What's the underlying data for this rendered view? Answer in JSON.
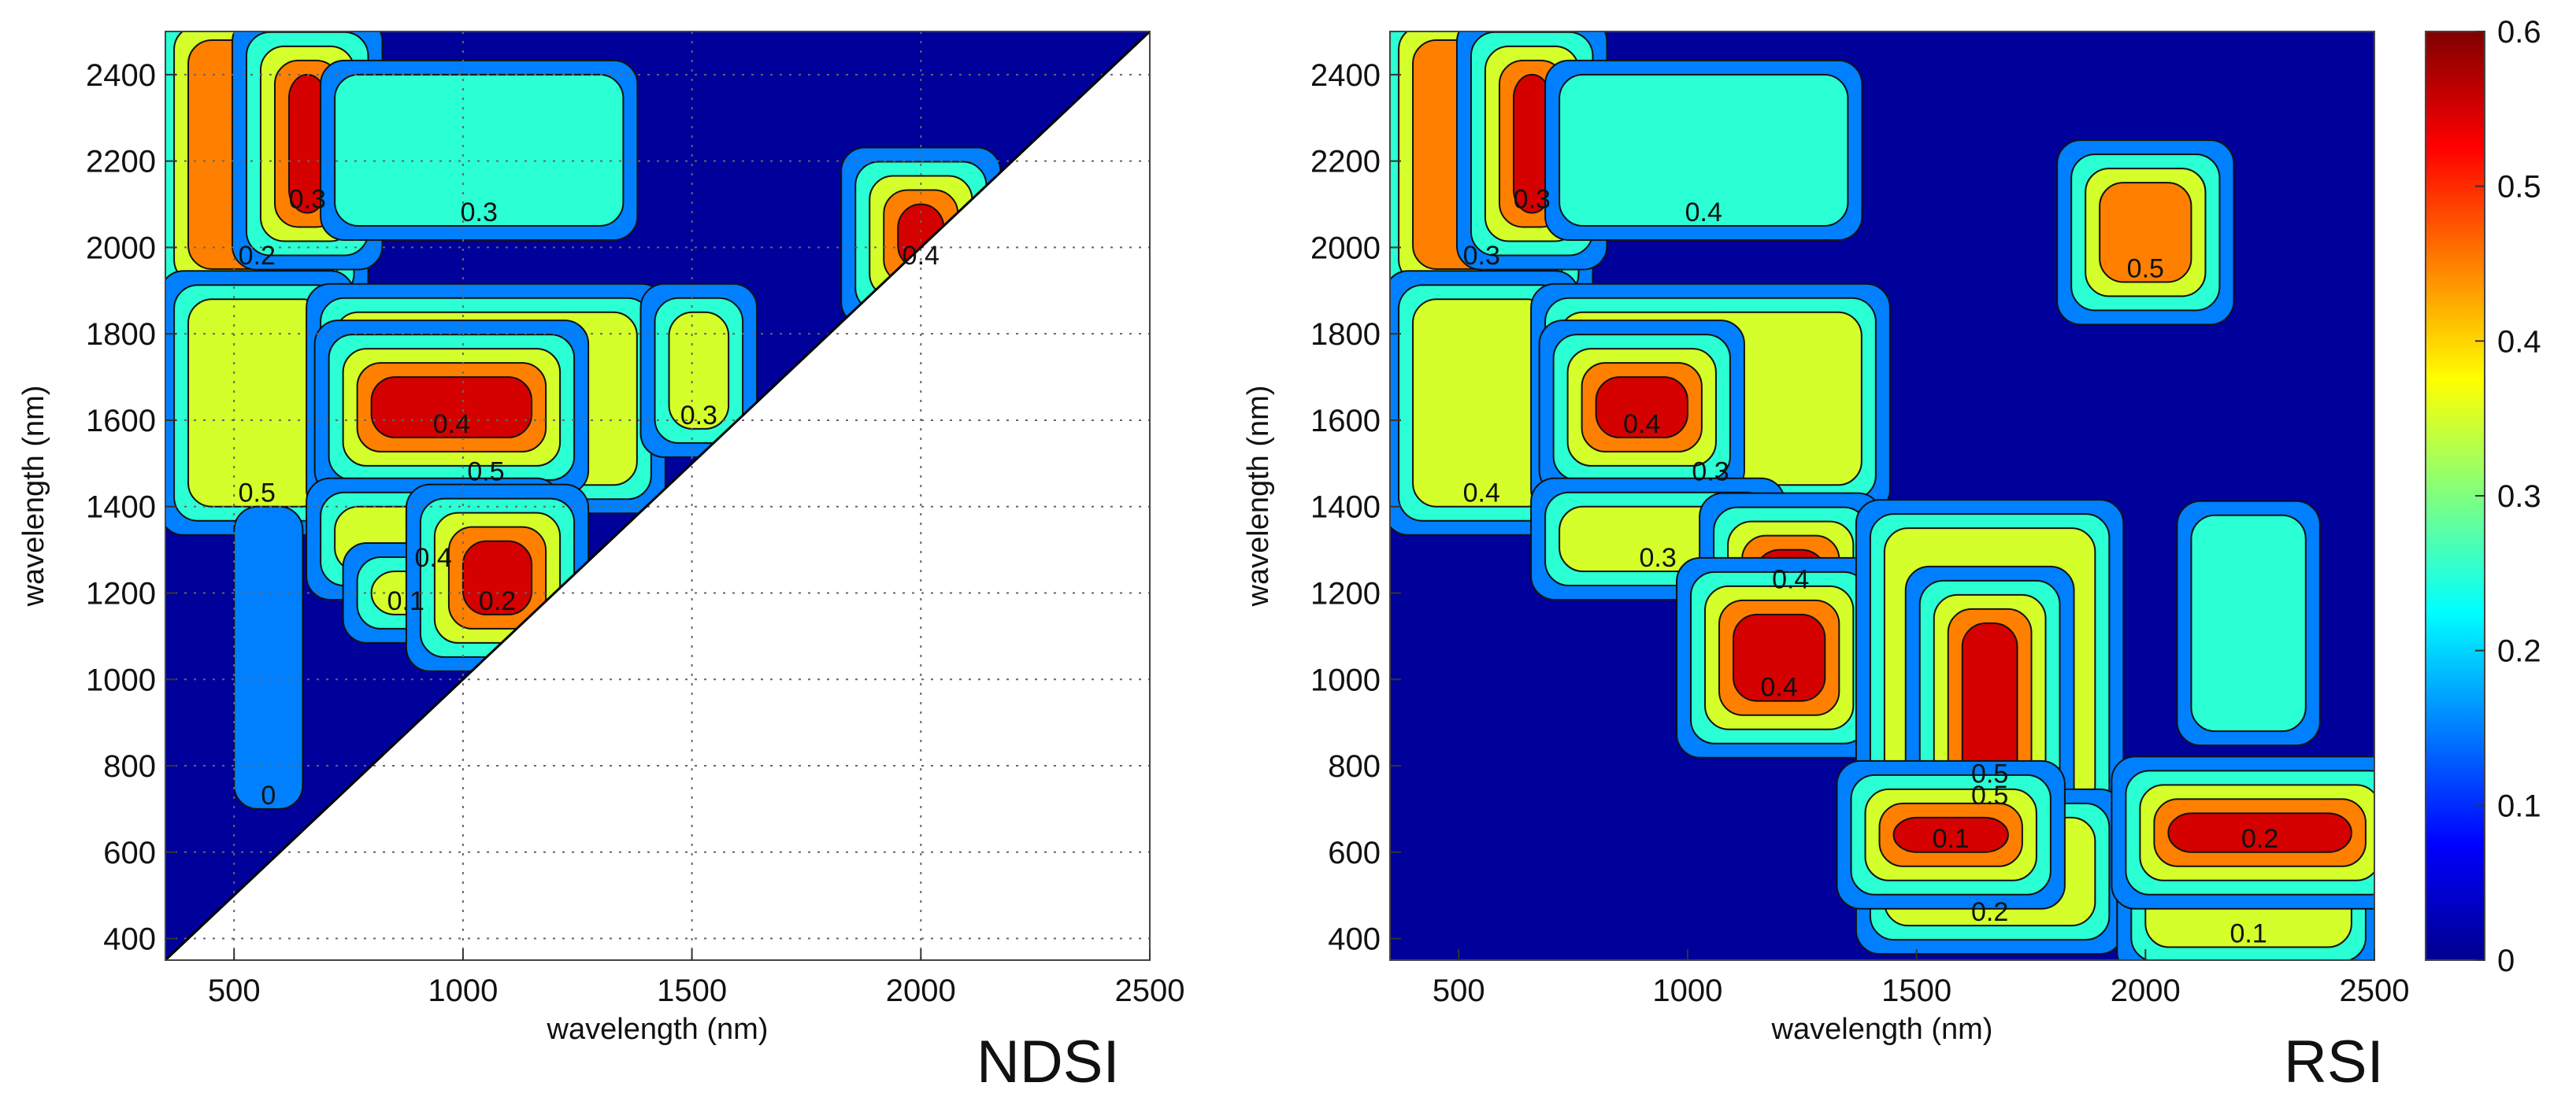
{
  "chart_data": [
    {
      "type": "heatmap",
      "subtype": "contour",
      "panel_label": "NDSI",
      "xlabel": "wavelength (nm)",
      "ylabel": "wavelength (nm)",
      "xlim": [
        350,
        2500
      ],
      "ylim": [
        350,
        2500
      ],
      "xticks": [
        500,
        1000,
        1500,
        2000,
        2500
      ],
      "yticks": [
        400,
        600,
        800,
        1000,
        1200,
        1400,
        1600,
        1800,
        2000,
        2200,
        2400
      ],
      "grid": true,
      "mask": "lower-right triangle empty (upper-left only)",
      "contour_levels": [
        0,
        0.1,
        0.2,
        0.3,
        0.4,
        0.5
      ],
      "contour_labels": [
        "0.2",
        "0.3",
        "0.3",
        "0.4",
        "0.5",
        "0.5",
        "0.4",
        "0.3",
        "0.4",
        "0.1",
        "0.2",
        "0"
      ],
      "regions": [
        {
          "x": [
            400,
            700
          ],
          "y": [
            1950,
            2480
          ],
          "value": 0.45
        },
        {
          "x": [
            620,
            700
          ],
          "y": [
            2080,
            2400
          ],
          "value": 0.55
        },
        {
          "x": [
            720,
            1350
          ],
          "y": [
            2050,
            2400
          ],
          "value": 0.28
        },
        {
          "x": [
            1950,
            2050
          ],
          "y": [
            1950,
            2100
          ],
          "value": 0.55
        },
        {
          "x": [
            400,
            700
          ],
          "y": [
            1400,
            1880
          ],
          "value": 0.4
        },
        {
          "x": [
            720,
            1380
          ],
          "y": [
            1450,
            1850
          ],
          "value": 0.42
        },
        {
          "x": [
            800,
            1150
          ],
          "y": [
            1560,
            1700
          ],
          "value": 0.55
        },
        {
          "x": [
            1450,
            1580
          ],
          "y": [
            1580,
            1850
          ],
          "value": 0.42
        },
        {
          "x": [
            720,
            1150
          ],
          "y": [
            1250,
            1400
          ],
          "value": 0.4
        },
        {
          "x": [
            800,
            950
          ],
          "y": [
            1150,
            1250
          ],
          "value": 0.4
        },
        {
          "x": [
            1000,
            1150
          ],
          "y": [
            1150,
            1320
          ],
          "value": 0.55
        },
        {
          "x": [
            500,
            650
          ],
          "y": [
            700,
            1400
          ],
          "value": 0.18
        }
      ]
    },
    {
      "type": "heatmap",
      "subtype": "contour",
      "panel_label": "RSI",
      "xlabel": "wavelength (nm)",
      "ylabel": "wavelength (nm)",
      "xlim": [
        350,
        2500
      ],
      "ylim": [
        350,
        2500
      ],
      "xticks": [
        500,
        1000,
        1500,
        2000,
        2500
      ],
      "yticks": [
        400,
        600,
        800,
        1000,
        1200,
        1400,
        1600,
        1800,
        2000,
        2200,
        2400
      ],
      "grid": false,
      "contour_levels": [
        0,
        0.1,
        0.2,
        0.3,
        0.4,
        0.5
      ],
      "contour_labels": [
        "0.3",
        "0.3",
        "0.4",
        "0.5",
        "0.4",
        "0.3",
        "0.4",
        "0.3",
        "0.4",
        "0.4",
        "0.5",
        "0.5",
        "0.2",
        "0.1",
        "0.1",
        "0.2"
      ],
      "regions": [
        {
          "x": [
            400,
            700
          ],
          "y": [
            1950,
            2480
          ],
          "value": 0.45
        },
        {
          "x": [
            620,
            700
          ],
          "y": [
            2080,
            2400
          ],
          "value": 0.55
        },
        {
          "x": [
            720,
            1350
          ],
          "y": [
            2050,
            2400
          ],
          "value": 0.28
        },
        {
          "x": [
            1900,
            2100
          ],
          "y": [
            1920,
            2150
          ],
          "value": 0.5
        },
        {
          "x": [
            400,
            700
          ],
          "y": [
            1400,
            1880
          ],
          "value": 0.4
        },
        {
          "x": [
            720,
            1380
          ],
          "y": [
            1450,
            1850
          ],
          "value": 0.42
        },
        {
          "x": [
            800,
            1000
          ],
          "y": [
            1560,
            1700
          ],
          "value": 0.55
        },
        {
          "x": [
            720,
            1150
          ],
          "y": [
            1250,
            1400
          ],
          "value": 0.4
        },
        {
          "x": [
            1150,
            1300
          ],
          "y": [
            1200,
            1300
          ],
          "value": 0.55
        },
        {
          "x": [
            1100,
            1300
          ],
          "y": [
            950,
            1150
          ],
          "value": 0.55
        },
        {
          "x": [
            1430,
            1890
          ],
          "y": [
            700,
            1350
          ],
          "value": 0.42
        },
        {
          "x": [
            1600,
            1720
          ],
          "y": [
            750,
            1130
          ],
          "value": 0.55
        },
        {
          "x": [
            1430,
            1890
          ],
          "y": [
            430,
            680
          ],
          "value": 0.42
        },
        {
          "x": [
            1450,
            1700
          ],
          "y": [
            600,
            680
          ],
          "value": 0.55
        },
        {
          "x": [
            2000,
            2450
          ],
          "y": [
            380,
            690
          ],
          "value": 0.42
        },
        {
          "x": [
            2050,
            2450
          ],
          "y": [
            600,
            690
          ],
          "value": 0.55
        },
        {
          "x": [
            2100,
            2350
          ],
          "y": [
            880,
            1380
          ],
          "value": 0.3
        }
      ]
    }
  ],
  "colorbar": {
    "min": 0,
    "max": 0.6,
    "ticks": [
      "0",
      "0.1",
      "0.2",
      "0.3",
      "0.4",
      "0.5",
      "0.6"
    ],
    "colormap": "jet"
  }
}
